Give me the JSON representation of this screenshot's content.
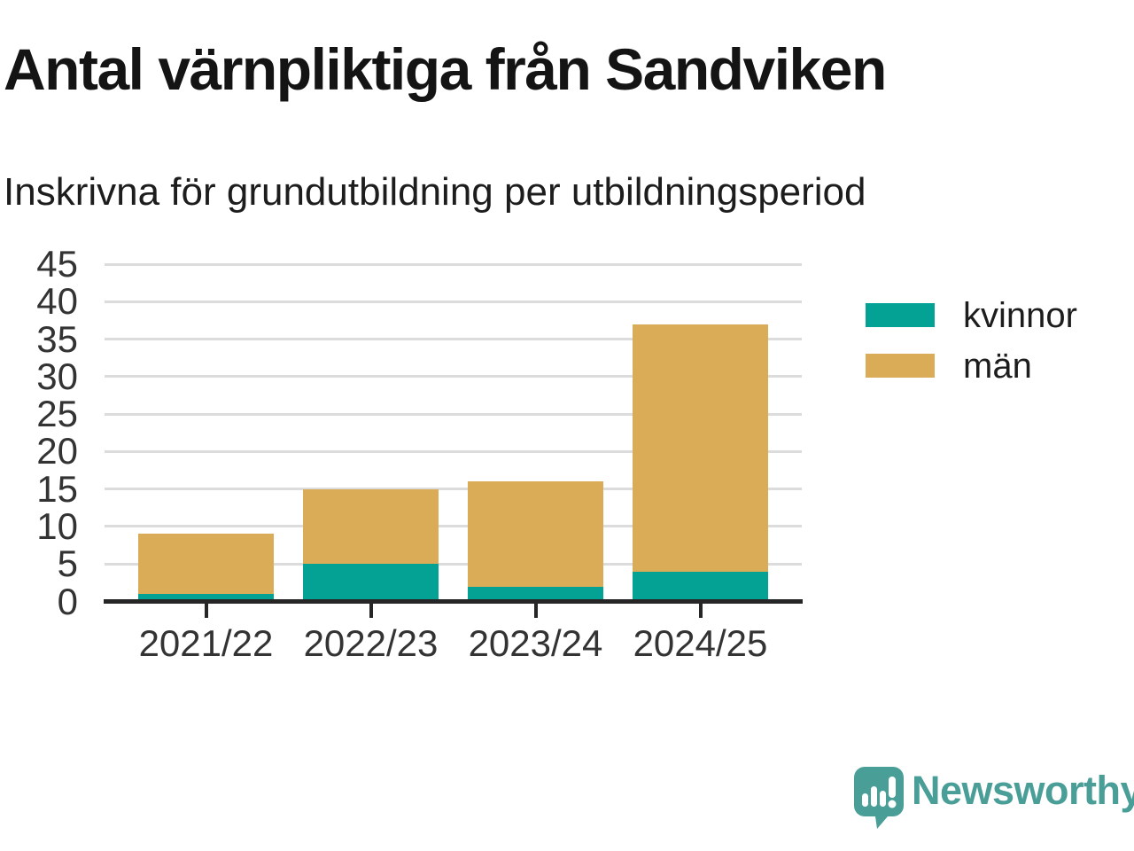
{
  "header": {
    "title": "Antal värnpliktiga från Sandviken",
    "subtitle": "Inskrivna för grundutbildning per utbildningsperiod"
  },
  "chart_data": {
    "type": "bar",
    "stacked": true,
    "title": "Antal värnpliktiga från Sandviken",
    "subtitle": "Inskrivna för grundutbildning per utbildningsperiod",
    "categories": [
      "2021/22",
      "2022/23",
      "2023/24",
      "2024/25"
    ],
    "series": [
      {
        "name": "kvinnor",
        "color": "#04a195",
        "values": [
          1,
          5,
          2,
          4
        ]
      },
      {
        "name": "män",
        "color": "#daac57",
        "values": [
          8,
          10,
          14,
          33
        ]
      }
    ],
    "totals": [
      9,
      15,
      16,
      37
    ],
    "xlabel": "",
    "ylabel": "",
    "ylim": [
      0,
      45
    ],
    "yticks": [
      0,
      5,
      10,
      15,
      20,
      25,
      30,
      35,
      40,
      45
    ],
    "grid": true,
    "gridline_color": "#dcdcdc",
    "axis_color": "#262626",
    "tick_label_color": "#333333",
    "legend_position": "right"
  },
  "footer": {
    "brand": "Newsworthy",
    "brand_color": "#4a9e98",
    "logo_icon": "chart-speech-bubble-icon"
  }
}
